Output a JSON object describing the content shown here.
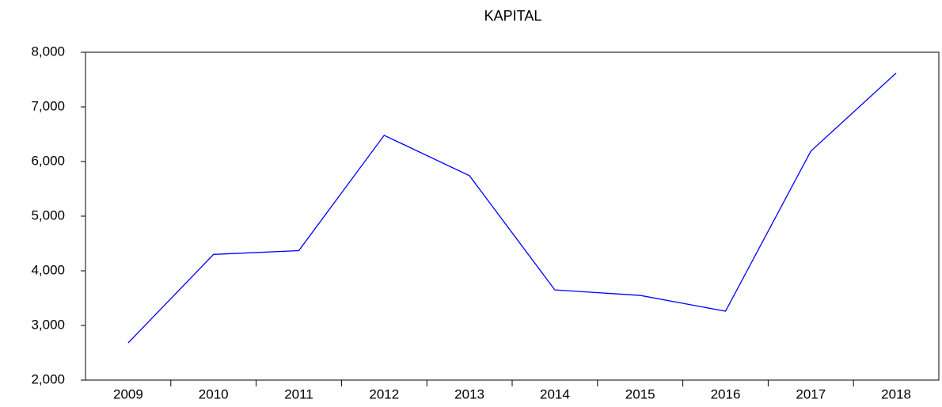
{
  "chart_data": {
    "type": "line",
    "title": "KAPITAL",
    "categories": [
      "2009",
      "2010",
      "2011",
      "2012",
      "2013",
      "2014",
      "2015",
      "2016",
      "2017",
      "2018"
    ],
    "series": [
      {
        "name": "KAPITAL",
        "color": "#0000ff",
        "values": [
          2680,
          4300,
          4370,
          6480,
          5740,
          3650,
          3550,
          3260,
          6190,
          7620
        ]
      }
    ],
    "ylim": [
      2000,
      8000
    ],
    "yticks": [
      {
        "value": 2000,
        "label": "2,000"
      },
      {
        "value": 3000,
        "label": "3,000"
      },
      {
        "value": 4000,
        "label": "4,000"
      },
      {
        "value": 5000,
        "label": "5,000"
      },
      {
        "value": 6000,
        "label": "6,000"
      },
      {
        "value": 7000,
        "label": "7,000"
      },
      {
        "value": 8000,
        "label": "8,000"
      }
    ]
  }
}
